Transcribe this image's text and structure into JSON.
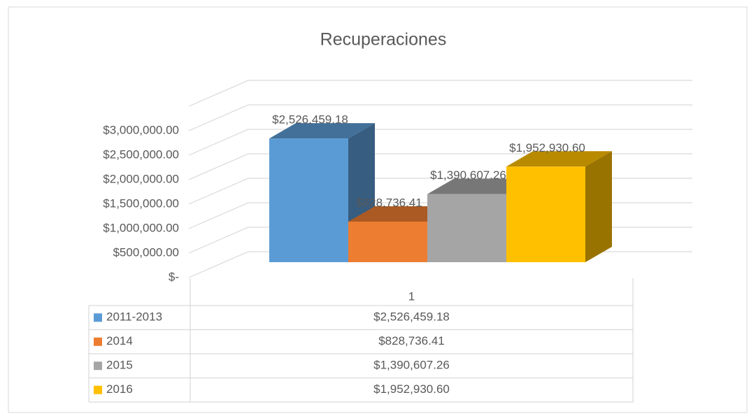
{
  "chart_data": {
    "type": "bar3d",
    "title": "Recuperaciones",
    "categories": [
      "1"
    ],
    "series": [
      {
        "name": "2011-2013",
        "color": "#5b9bd5",
        "values": [
          2526459.18
        ],
        "value_labels": [
          "$2,526,459.18"
        ]
      },
      {
        "name": "2014",
        "color": "#ed7d31",
        "values": [
          828736.41
        ],
        "value_labels": [
          "$828,736.41"
        ]
      },
      {
        "name": "2015",
        "color": "#a5a5a5",
        "values": [
          1390607.26
        ],
        "value_labels": [
          "$1,390,607.26"
        ]
      },
      {
        "name": "2016",
        "color": "#ffc000",
        "values": [
          1952930.6
        ],
        "value_labels": [
          "$1,952,930.60"
        ]
      }
    ],
    "ylim": [
      0,
      3500000
    ],
    "yticks": [
      {
        "value": 0,
        "label": "$-"
      },
      {
        "value": 500000,
        "label": "$500,000.00"
      },
      {
        "value": 1000000,
        "label": "$1,000,000.00"
      },
      {
        "value": 1500000,
        "label": "$1,500,000.00"
      },
      {
        "value": 2000000,
        "label": "$2,000,000.00"
      },
      {
        "value": 2500000,
        "label": "$2,500,000.00"
      },
      {
        "value": 3000000,
        "label": "$3,000,000.00"
      }
    ],
    "grid": true,
    "data_table": true
  }
}
